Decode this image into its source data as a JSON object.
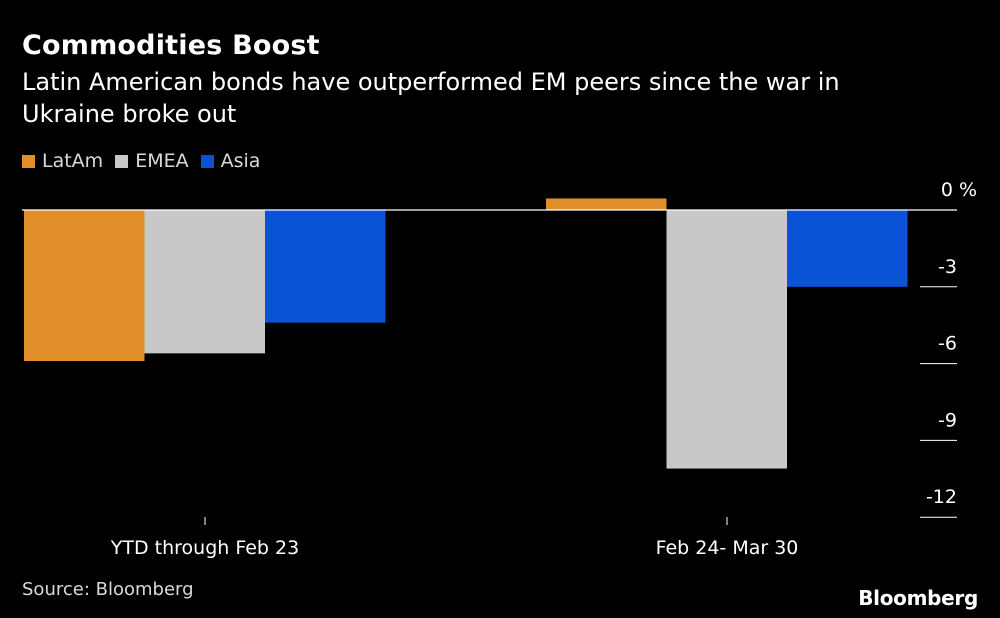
{
  "chart_data": {
    "type": "bar",
    "title": "Commodities Boost",
    "subtitle": "Latin American bonds have outperformed EM peers since the war in Ukraine broke out",
    "categories": [
      "YTD through Feb 23",
      "Feb 24- Mar 30"
    ],
    "series": [
      {
        "name": "LatAm",
        "color": "#e08f2b",
        "values": [
          -5.9,
          0.45
        ]
      },
      {
        "name": "EMEA",
        "color": "#c8c8c8",
        "values": [
          -5.6,
          -10.1
        ]
      },
      {
        "name": "Asia",
        "color": "#0a52d6",
        "values": [
          -4.4,
          -3.0
        ]
      }
    ],
    "yticks": [
      0,
      -3,
      -6,
      -9,
      -12
    ],
    "ytick_labels": [
      "0 %",
      "-3",
      "-6",
      "-9",
      "-12"
    ],
    "ylim": [
      -12.2,
      0.5
    ],
    "xlabel": "",
    "ylabel": "%",
    "legend_position": "top-left",
    "grid": false
  },
  "footer": {
    "source": "Source: Bloomberg",
    "brand": "Bloomberg"
  }
}
